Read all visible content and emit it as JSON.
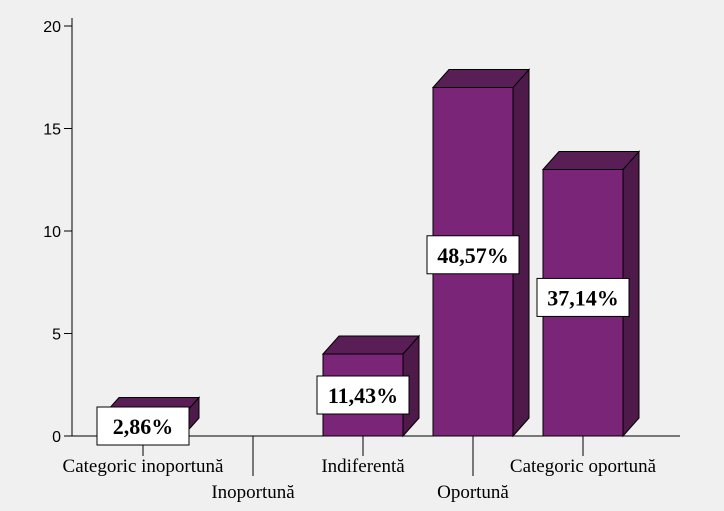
{
  "chart_data": {
    "type": "bar",
    "style": "3d-column",
    "categories": [
      "Categoric inoportună",
      "Inoportună",
      "Indiferentă",
      "Oportună",
      "Categoric oportună"
    ],
    "values": [
      1,
      0,
      4,
      17,
      13
    ],
    "data_labels": [
      "2,86%",
      "",
      "11,43%",
      "48,57%",
      "37,14%"
    ],
    "title": "",
    "xlabel": "",
    "ylabel": "",
    "ylim": [
      0,
      20
    ],
    "yticks": [
      0,
      5,
      10,
      15,
      20
    ],
    "grid": false,
    "legend": "none",
    "colors": {
      "bar_front": "#7a2578",
      "bar_side": "#4d1a4a",
      "bar_top": "#5a1e57",
      "background": "#f0f0f0",
      "axis": "#000000",
      "label_box": "#ffffff"
    }
  }
}
